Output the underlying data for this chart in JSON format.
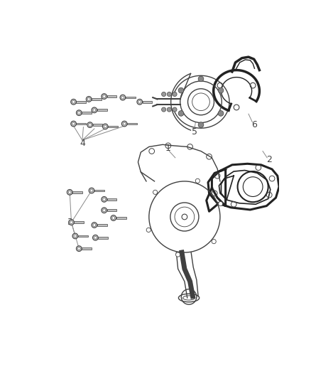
{
  "bg_color": "#ffffff",
  "line_color": "#404040",
  "label_color": "#404040",
  "figsize": [
    4.38,
    5.33
  ],
  "dpi": 100
}
